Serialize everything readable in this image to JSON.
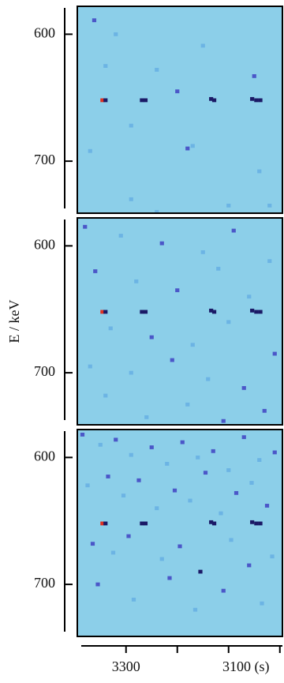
{
  "chart_data": [
    {
      "type": "heatmap",
      "xlim": [
        3395,
        2995
      ],
      "ylim": [
        578,
        741
      ],
      "yticks": [
        600,
        700
      ],
      "cell_size": [
        8,
        3
      ],
      "colors": [
        "#8ccfe9",
        "#6cb4e4",
        "#4b57c8",
        "#1b1a66",
        "#e03020"
      ],
      "x": [
        3346,
        3340,
        3269,
        3262,
        3134,
        3128,
        3054,
        3046,
        3038,
        3362,
        3200,
        3050,
        3340,
        3150,
        3290,
        3180,
        3170,
        3290,
        3100,
        3370,
        3040,
        3320,
        3020,
        3240,
        3240
      ],
      "y": [
        652,
        652,
        652,
        652,
        651,
        652,
        651,
        652,
        652,
        589,
        645,
        633,
        625,
        609,
        672,
        690,
        688,
        730,
        735,
        692,
        708,
        600,
        735,
        740,
        628
      ],
      "intensity": [
        4,
        3,
        3,
        3,
        3,
        3,
        3,
        3,
        3,
        2,
        2,
        2,
        1,
        1,
        1,
        2,
        1,
        1,
        1,
        1,
        1,
        1,
        1,
        1,
        1
      ]
    },
    {
      "type": "heatmap",
      "xlim": [
        3395,
        2995
      ],
      "ylim": [
        578,
        741
      ],
      "yticks": [
        600,
        700
      ],
      "ylabel": "E / keV",
      "cell_size": [
        8,
        3
      ],
      "colors": [
        "#8ccfe9",
        "#6cb4e4",
        "#4b57c8",
        "#1b1a66",
        "#e03020"
      ],
      "x": [
        3346,
        3340,
        3269,
        3262,
        3134,
        3128,
        3054,
        3046,
        3038,
        3380,
        3310,
        3230,
        3150,
        3090,
        3020,
        3360,
        3280,
        3200,
        3120,
        3060,
        3330,
        3250,
        3170,
        3100,
        3010,
        3370,
        3290,
        3210,
        3140,
        3070,
        3340,
        3180,
        3030,
        3260,
        3110
      ],
      "y": [
        652,
        652,
        652,
        652,
        651,
        652,
        651,
        652,
        652,
        585,
        592,
        598,
        605,
        588,
        612,
        620,
        628,
        635,
        618,
        640,
        665,
        672,
        678,
        660,
        685,
        695,
        700,
        690,
        705,
        712,
        718,
        725,
        730,
        735,
        738
      ],
      "intensity": [
        4,
        3,
        3,
        3,
        3,
        3,
        3,
        3,
        3,
        2,
        1,
        2,
        1,
        2,
        1,
        2,
        1,
        2,
        1,
        1,
        1,
        2,
        1,
        1,
        2,
        1,
        1,
        2,
        1,
        2,
        1,
        1,
        2,
        1,
        2
      ]
    },
    {
      "type": "heatmap",
      "xlim": [
        3395,
        2995
      ],
      "ylim": [
        578,
        741
      ],
      "yticks": [
        600,
        700
      ],
      "xticks": [
        3300,
        {
          "value": 3100,
          "label": "3100 (s)"
        }
      ],
      "xminorticks": [
        3200,
        3000
      ],
      "cell_size": [
        8,
        3
      ],
      "colors": [
        "#8ccfe9",
        "#6cb4e4",
        "#4b57c8",
        "#1b1a66",
        "#e03020"
      ],
      "x": [
        3346,
        3340,
        3269,
        3262,
        3134,
        3128,
        3054,
        3046,
        3038,
        3385,
        3350,
        3320,
        3290,
        3250,
        3220,
        3190,
        3160,
        3130,
        3100,
        3070,
        3040,
        3010,
        3375,
        3335,
        3305,
        3275,
        3240,
        3205,
        3175,
        3145,
        3115,
        3085,
        3055,
        3025,
        3365,
        3325,
        3295,
        3230,
        3195,
        3155,
        3095,
        3060,
        3015,
        3355,
        3285,
        3215,
        3165,
        3110,
        3035
      ],
      "y": [
        652,
        652,
        652,
        652,
        651,
        652,
        651,
        652,
        652,
        582,
        590,
        586,
        598,
        592,
        605,
        588,
        600,
        595,
        610,
        584,
        602,
        596,
        622,
        615,
        630,
        618,
        640,
        626,
        634,
        612,
        644,
        628,
        620,
        638,
        668,
        675,
        662,
        680,
        670,
        690,
        665,
        685,
        678,
        700,
        712,
        695,
        720,
        705,
        715
      ],
      "intensity": [
        4,
        3,
        3,
        3,
        3,
        3,
        3,
        3,
        3,
        2,
        1,
        2,
        1,
        2,
        1,
        2,
        1,
        2,
        1,
        2,
        1,
        2,
        1,
        2,
        1,
        2,
        1,
        2,
        1,
        2,
        1,
        2,
        1,
        2,
        2,
        1,
        2,
        1,
        2,
        3,
        1,
        2,
        1,
        2,
        1,
        2,
        1,
        2,
        1
      ]
    }
  ]
}
